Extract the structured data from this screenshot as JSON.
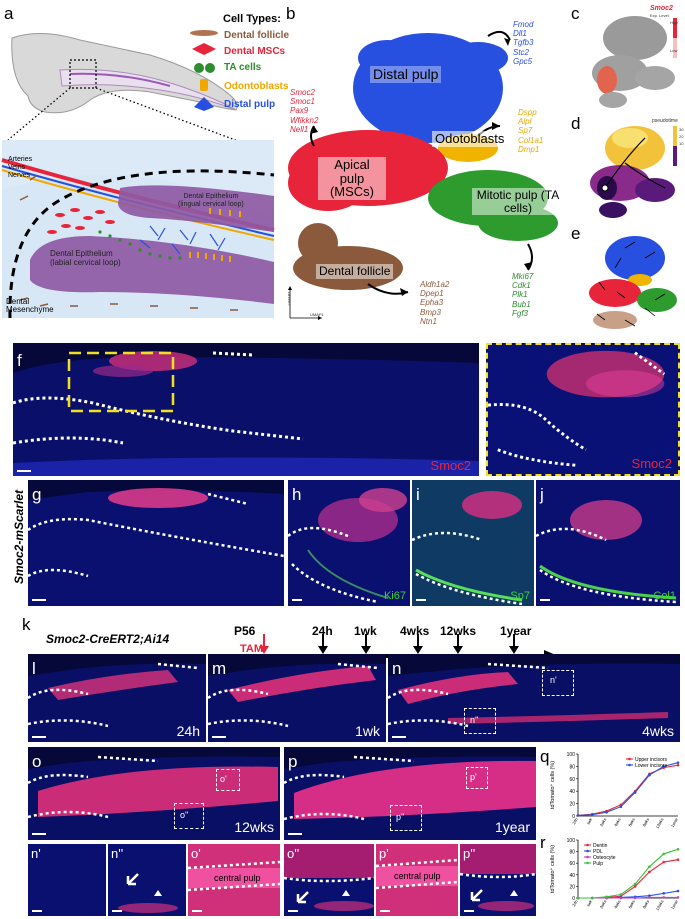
{
  "panels": {
    "a": "a",
    "b": "b",
    "c": "c",
    "d": "d",
    "e": "e",
    "f": "f",
    "g": "g",
    "h": "h",
    "i": "i",
    "j": "j",
    "k": "k",
    "l": "l",
    "m": "m",
    "n": "n",
    "o": "o",
    "p": "p",
    "q": "q",
    "r": "r",
    "n1": "n'",
    "n2": "n''",
    "o1": "o'",
    "o2": "o''",
    "p1": "p'",
    "p2": "p''"
  },
  "cell_types": {
    "title": "Cell Types:",
    "items": [
      {
        "label": "Dental follicle",
        "color": "#8b5a3c"
      },
      {
        "label": "Dental MSCs",
        "color": "#e8243a"
      },
      {
        "label": "TA cells",
        "color": "#2e8b2e"
      },
      {
        "label": "Odontoblasts",
        "color": "#f0a800"
      },
      {
        "label": "Distal pulp",
        "color": "#2750e0"
      }
    ]
  },
  "schematic": {
    "legend": [
      "Arteries",
      "Veins",
      "Nerves"
    ],
    "legend_colors": [
      "#e8243a",
      "#2750e0",
      "#f0a800"
    ],
    "epithelium_lingual": "Dental Epithelium",
    "epithelium_lingual_sub": "(lingual cervical loop)",
    "epithelium_labial": "Dental Epithelium",
    "epithelium_labial_sub": "(labial cervical loop)",
    "mesenchyme": "Dental Mesenchyme"
  },
  "umap": {
    "clusters": {
      "distal": "Distal pulp",
      "odonto": "Odotoblasts",
      "apical": "Apical pulp (MSCs)",
      "mitotic": "Mitotic pulp (TA cells)",
      "follicle": "Dental follicle"
    },
    "genes_distal": [
      "Fmod",
      "Dll1",
      "Tgfb3",
      "Stc2",
      "Gpc5"
    ],
    "genes_apical": [
      "Smoc2",
      "Smoc1",
      "Pax9",
      "Wfikkn2",
      "Nell1"
    ],
    "genes_odonto": [
      "Dspp",
      "Alpl",
      "Sp7",
      "Col1a1",
      "Dmp1"
    ],
    "genes_mitotic": [
      "Mki67",
      "Cdk1",
      "Plk1",
      "Bub1",
      "Fgf3"
    ],
    "genes_follicle": [
      "Aldh1a2",
      "Dpep1",
      "Epha3",
      "Bmp3",
      "Ntn1"
    ],
    "axis_x": "UMAP1",
    "axis_y": "UMAP2"
  },
  "panel_c": {
    "title": "Smoc2",
    "sub": "Exp. Level",
    "high": "High",
    "low": "Low"
  },
  "panel_d": {
    "title": "pseudotime",
    "ticks": [
      "10",
      "20",
      "30"
    ]
  },
  "stains": {
    "f": "Smoc2",
    "f_zoom": "Smoc2",
    "h": "Ki67",
    "i": "Sp7",
    "j": "Col1"
  },
  "side_label": "Smoc2-mScarlet",
  "timeline": {
    "genotype": "Smoc2-CreERT2;Ai14",
    "tam": "TAM",
    "start": "P56",
    "points": [
      "24h",
      "1wk",
      "4wks",
      "12wks",
      "1year"
    ]
  },
  "time_labels": {
    "l": "24h",
    "m": "1wk",
    "n": "4wks",
    "o": "12wks",
    "p": "1year"
  },
  "zoom_text": {
    "central_pulp_o": "central pulp",
    "central_pulp_p": "central pulp"
  },
  "chart_data": [
    {
      "type": "line",
      "ylabel": "tdTomato⁺ cells (%)",
      "ylim": [
        0,
        100
      ],
      "yticks": [
        0,
        20,
        40,
        60,
        80,
        100
      ],
      "x": [
        "24h",
        "1wk",
        "2wks",
        "4wks",
        "6wks",
        "8wks",
        "12wks",
        "1year"
      ],
      "legend_position": "top-right",
      "series": [
        {
          "name": "Upper incisors",
          "color": "#e8243a",
          "values": [
            1,
            3,
            8,
            18,
            40,
            68,
            78,
            82
          ]
        },
        {
          "name": "Lower incisors",
          "color": "#2750e0",
          "values": [
            1,
            2,
            6,
            15,
            38,
            66,
            80,
            86
          ]
        }
      ]
    },
    {
      "type": "line",
      "ylabel": "tdTomato⁺ cells (%)",
      "ylim": [
        0,
        100
      ],
      "yticks": [
        0,
        20,
        40,
        60,
        80,
        100
      ],
      "x": [
        "24h",
        "1wk",
        "2wks",
        "4wks",
        "6wks",
        "8wks",
        "12wks",
        "1year"
      ],
      "legend_position": "top-left",
      "series": [
        {
          "name": "Dentin",
          "color": "#e8243a",
          "values": [
            0,
            0,
            1,
            3,
            20,
            45,
            62,
            66
          ]
        },
        {
          "name": "PDL",
          "color": "#2750e0",
          "values": [
            0,
            0,
            0,
            1,
            2,
            4,
            8,
            12
          ]
        },
        {
          "name": "Osteocyte",
          "color": "#c040c0",
          "values": [
            0,
            0,
            0,
            0,
            0,
            1,
            1,
            1
          ]
        },
        {
          "name": "Pulp",
          "color": "#3ac03a",
          "values": [
            0,
            0,
            2,
            6,
            24,
            54,
            76,
            84
          ]
        }
      ]
    }
  ]
}
